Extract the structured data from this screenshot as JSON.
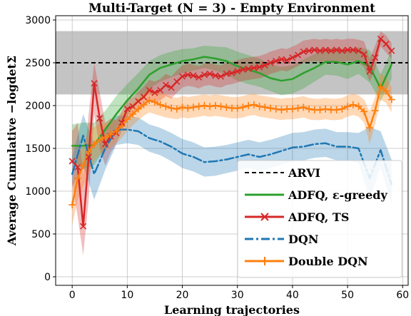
{
  "chart_data": {
    "type": "line",
    "title": "Multi-Target (N = 3) - Empty Environment",
    "xlabel": "Learning trajectories",
    "ylabel": "Average Cumulative −logdetΣ",
    "xlim": [
      -3,
      61
    ],
    "ylim": [
      -100,
      3050
    ],
    "xticks": [
      0,
      10,
      20,
      30,
      40,
      50,
      60
    ],
    "yticks": [
      0,
      500,
      1000,
      1500,
      2000,
      2500,
      3000
    ],
    "xtick_labels": [
      "0",
      "10",
      "20",
      "30",
      "40",
      "50",
      "60"
    ],
    "ytick_labels": [
      "0",
      "500",
      "1000",
      "1500",
      "2000",
      "2500",
      "3000"
    ],
    "grid": true,
    "legend_position": "lower-right",
    "reference": {
      "name": "ARVI",
      "value": 2500,
      "band": [
        2130,
        2870
      ],
      "color": "#000000",
      "band_color": "#b0b0b0"
    },
    "series": [
      {
        "name": "ADFQ, ε-greedy",
        "color": "#2ca02c",
        "style": "solid",
        "marker": "none",
        "x": [
          0,
          2,
          4,
          6,
          8,
          10,
          12,
          14,
          16,
          18,
          20,
          22,
          24,
          26,
          28,
          30,
          32,
          34,
          36,
          38,
          40,
          42,
          44,
          46,
          48,
          50,
          52,
          54,
          56,
          58
        ],
        "values": [
          1530,
          1530,
          1540,
          1720,
          1900,
          2060,
          2200,
          2360,
          2440,
          2480,
          2520,
          2540,
          2570,
          2550,
          2520,
          2460,
          2420,
          2380,
          2320,
          2290,
          2310,
          2380,
          2440,
          2510,
          2510,
          2480,
          2520,
          2460,
          2200,
          2480
        ],
        "lower": [
          1350,
          1260,
          1300,
          1500,
          1700,
          1880,
          2040,
          2200,
          2280,
          2330,
          2380,
          2410,
          2440,
          2410,
          2360,
          2290,
          2250,
          2220,
          2170,
          2120,
          2140,
          2200,
          2280,
          2360,
          2350,
          2310,
          2370,
          2270,
          2050,
          2310
        ],
        "upper": [
          1780,
          1800,
          1800,
          1940,
          2110,
          2250,
          2380,
          2520,
          2590,
          2630,
          2660,
          2670,
          2700,
          2690,
          2680,
          2630,
          2590,
          2550,
          2480,
          2450,
          2470,
          2540,
          2600,
          2660,
          2670,
          2640,
          2680,
          2650,
          2360,
          2650
        ]
      },
      {
        "name": "ADFQ, TS",
        "color": "#d62728",
        "style": "solid",
        "marker": "x",
        "x": [
          0,
          1,
          2,
          3,
          4,
          5,
          6,
          7,
          8,
          9,
          10,
          11,
          12,
          13,
          14,
          15,
          16,
          17,
          18,
          19,
          20,
          21,
          22,
          23,
          24,
          25,
          26,
          27,
          28,
          29,
          30,
          31,
          32,
          33,
          34,
          35,
          36,
          37,
          38,
          39,
          40,
          41,
          42,
          43,
          44,
          45,
          46,
          47,
          48,
          49,
          50,
          51,
          52,
          53,
          54,
          55,
          56,
          57,
          58
        ],
        "values": [
          1350,
          1280,
          590,
          1400,
          2260,
          1850,
          1550,
          1640,
          1680,
          1800,
          1960,
          1990,
          2050,
          2100,
          2180,
          2150,
          2180,
          2240,
          2210,
          2280,
          2340,
          2360,
          2350,
          2330,
          2360,
          2370,
          2350,
          2340,
          2370,
          2380,
          2400,
          2420,
          2430,
          2440,
          2450,
          2470,
          2500,
          2520,
          2540,
          2530,
          2560,
          2590,
          2630,
          2640,
          2650,
          2640,
          2650,
          2640,
          2650,
          2640,
          2650,
          2650,
          2640,
          2600,
          2400,
          2560,
          2780,
          2720,
          2640
        ],
        "lower": [
          1100,
          700,
          250,
          900,
          1900,
          1500,
          1300,
          1450,
          1550,
          1700,
          1840,
          1890,
          1940,
          1990,
          2060,
          2040,
          2060,
          2110,
          2080,
          2150,
          2210,
          2230,
          2220,
          2200,
          2230,
          2240,
          2220,
          2210,
          2240,
          2250,
          2270,
          2290,
          2300,
          2310,
          2320,
          2340,
          2370,
          2390,
          2410,
          2400,
          2430,
          2460,
          2500,
          2510,
          2520,
          2510,
          2520,
          2510,
          2520,
          2510,
          2520,
          2520,
          2500,
          2450,
          2280,
          2420,
          2690,
          2620,
          2550
        ],
        "upper": [
          1700,
          1800,
          1200,
          1900,
          2500,
          2150,
          1800,
          1850,
          1830,
          1930,
          2080,
          2100,
          2160,
          2220,
          2300,
          2280,
          2310,
          2370,
          2340,
          2410,
          2470,
          2490,
          2480,
          2460,
          2490,
          2500,
          2480,
          2470,
          2500,
          2510,
          2530,
          2550,
          2560,
          2570,
          2580,
          2600,
          2630,
          2650,
          2670,
          2660,
          2690,
          2720,
          2760,
          2770,
          2780,
          2770,
          2780,
          2770,
          2780,
          2770,
          2780,
          2780,
          2770,
          2750,
          2550,
          2700,
          2870,
          2820,
          2730
        ]
      },
      {
        "name": "DQN",
        "color": "#1f77b4",
        "style": "dashdot",
        "marker": "none",
        "x": [
          0,
          2,
          4,
          6,
          8,
          10,
          12,
          14,
          16,
          18,
          20,
          22,
          24,
          26,
          28,
          30,
          32,
          34,
          36,
          38,
          40,
          42,
          44,
          46,
          48,
          50,
          52,
          54,
          56,
          58
        ],
        "values": [
          1200,
          1650,
          1200,
          1500,
          1720,
          1720,
          1700,
          1620,
          1580,
          1520,
          1440,
          1400,
          1340,
          1350,
          1370,
          1400,
          1430,
          1400,
          1430,
          1470,
          1510,
          1520,
          1550,
          1560,
          1520,
          1520,
          1500,
          1150,
          1480,
          1080
        ],
        "lower": [
          1050,
          1300,
          900,
          1250,
          1540,
          1560,
          1540,
          1460,
          1420,
          1350,
          1270,
          1230,
          1170,
          1180,
          1210,
          1240,
          1270,
          1240,
          1270,
          1310,
          1350,
          1360,
          1390,
          1400,
          1360,
          1360,
          1330,
          900,
          1280,
          850
        ],
        "upper": [
          1400,
          1900,
          1550,
          1750,
          1880,
          1880,
          1860,
          1780,
          1740,
          1680,
          1610,
          1570,
          1510,
          1520,
          1540,
          1570,
          1600,
          1570,
          1600,
          1640,
          1680,
          1690,
          1720,
          1730,
          1690,
          1690,
          1680,
          1750,
          1700,
          1370
        ]
      },
      {
        "name": "Double DQN",
        "color": "#ff7f0e",
        "style": "solid",
        "marker": "+",
        "x": [
          0,
          1,
          2,
          3,
          4,
          5,
          6,
          7,
          8,
          9,
          10,
          11,
          12,
          13,
          14,
          15,
          16,
          17,
          18,
          19,
          20,
          21,
          22,
          23,
          24,
          25,
          26,
          27,
          28,
          29,
          30,
          31,
          32,
          33,
          34,
          35,
          36,
          37,
          38,
          39,
          40,
          41,
          42,
          43,
          44,
          45,
          46,
          47,
          48,
          49,
          50,
          51,
          52,
          53,
          54,
          55,
          56,
          57,
          58
        ],
        "values": [
          840,
          1150,
          1300,
          1460,
          1550,
          1600,
          1630,
          1660,
          1700,
          1760,
          1840,
          1900,
          1960,
          2010,
          2060,
          2040,
          2010,
          1990,
          1970,
          1960,
          1980,
          1970,
          1980,
          1990,
          2000,
          1990,
          2000,
          1990,
          1980,
          1970,
          1970,
          1980,
          2000,
          2010,
          1990,
          1980,
          1970,
          1960,
          1950,
          1960,
          1960,
          1970,
          1980,
          1960,
          1950,
          1950,
          1960,
          1950,
          1950,
          1960,
          1990,
          2010,
          1990,
          1930,
          1740,
          1940,
          2220,
          2170,
          2070
        ],
        "lower": [
          600,
          900,
          1050,
          1200,
          1350,
          1420,
          1470,
          1510,
          1560,
          1620,
          1700,
          1770,
          1830,
          1880,
          1920,
          1900,
          1880,
          1860,
          1850,
          1840,
          1860,
          1850,
          1860,
          1870,
          1880,
          1870,
          1880,
          1870,
          1860,
          1850,
          1850,
          1860,
          1880,
          1890,
          1870,
          1860,
          1850,
          1840,
          1830,
          1840,
          1840,
          1850,
          1860,
          1840,
          1830,
          1830,
          1840,
          1830,
          1830,
          1840,
          1870,
          1890,
          1870,
          1800,
          1550,
          1780,
          2070,
          2030,
          1920
        ],
        "upper": [
          1100,
          1400,
          1550,
          1700,
          1750,
          1780,
          1790,
          1810,
          1840,
          1900,
          1980,
          2030,
          2090,
          2140,
          2200,
          2180,
          2150,
          2130,
          2100,
          2090,
          2110,
          2100,
          2110,
          2120,
          2130,
          2120,
          2130,
          2120,
          2110,
          2100,
          2100,
          2110,
          2130,
          2140,
          2120,
          2110,
          2100,
          2090,
          2080,
          2090,
          2090,
          2100,
          2110,
          2090,
          2080,
          2080,
          2090,
          2080,
          2080,
          2090,
          2120,
          2140,
          2120,
          2070,
          1930,
          2100,
          2380,
          2320,
          2220
        ]
      }
    ]
  }
}
